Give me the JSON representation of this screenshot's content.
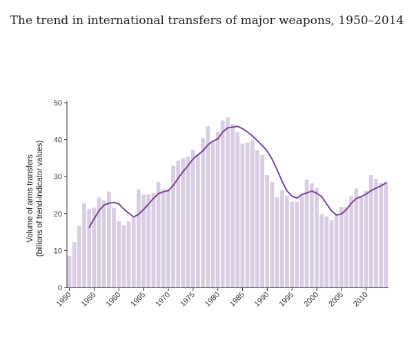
{
  "chart_data": {
    "type": "bar",
    "title": "The trend in international transfers of major weapons, 1950–2014",
    "ylabel": "Volume of arms transfers",
    "ylabel2": "(billions of trend-indicator values)",
    "xlabel": "",
    "ylim": [
      0,
      50
    ],
    "yticks": [
      "0",
      "10",
      "20",
      "30",
      "40",
      "50"
    ],
    "xticks": [
      "1950",
      "1955",
      "1960",
      "1965",
      "1970",
      "1975",
      "1980",
      "1985",
      "1990",
      "1995",
      "2000",
      "2005",
      "2010"
    ],
    "categories": [
      1950,
      1951,
      1952,
      1953,
      1954,
      1955,
      1956,
      1957,
      1958,
      1959,
      1960,
      1961,
      1962,
      1963,
      1964,
      1965,
      1966,
      1967,
      1968,
      1969,
      1970,
      1971,
      1972,
      1973,
      1974,
      1975,
      1976,
      1977,
      1978,
      1979,
      1980,
      1981,
      1982,
      1983,
      1984,
      1985,
      1986,
      1987,
      1988,
      1989,
      1990,
      1991,
      1992,
      1993,
      1994,
      1995,
      1996,
      1997,
      1998,
      1999,
      2000,
      2001,
      2002,
      2003,
      2004,
      2005,
      2006,
      2007,
      2008,
      2009,
      2010,
      2011,
      2012,
      2013,
      2014
    ],
    "series": [
      {
        "type": "bar",
        "color": "#d9cde4",
        "values": [
          8.6,
          12.3,
          16.6,
          22.7,
          21.2,
          21.6,
          24.4,
          23.6,
          26.0,
          21.6,
          17.9,
          16.8,
          17.9,
          19.0,
          26.6,
          25.2,
          25.2,
          25.6,
          28.5,
          26.6,
          26.5,
          32.9,
          34.3,
          35.0,
          35.4,
          37.2,
          35.9,
          40.4,
          43.6,
          39.6,
          42.1,
          45.2,
          46.0,
          44.2,
          42.1,
          38.9,
          39.2,
          39.8,
          37.2,
          35.9,
          30.4,
          28.6,
          24.4,
          26.3,
          24.8,
          23.2,
          23.2,
          25.2,
          29.2,
          28.2,
          26.9,
          19.8,
          19.2,
          18.2,
          19.6,
          21.8,
          21.8,
          24.7,
          26.8,
          24.5,
          26.2,
          30.4,
          29.3,
          28.3,
          28.6
        ]
      },
      {
        "type": "line",
        "color": "#7b3f98",
        "values": [
          null,
          null,
          null,
          null,
          16.3,
          18.6,
          20.8,
          22.3,
          22.8,
          23.0,
          22.6,
          21.2,
          20.1,
          19.1,
          19.8,
          21.1,
          22.6,
          24.1,
          25.4,
          25.9,
          26.2,
          27.6,
          29.6,
          31.4,
          33.0,
          34.8,
          35.9,
          37.0,
          38.6,
          39.6,
          40.2,
          42.1,
          43.2,
          43.4,
          43.6,
          43.0,
          42.1,
          41.0,
          39.7,
          38.4,
          36.9,
          34.7,
          31.8,
          28.7,
          26.1,
          24.7,
          24.2,
          25.2,
          25.6,
          26.1,
          25.5,
          24.6,
          22.6,
          20.7,
          19.6,
          19.9,
          21.1,
          22.8,
          24.1,
          24.6,
          25.3,
          26.2,
          26.9,
          27.5,
          28.3
        ]
      }
    ],
    "grid": false,
    "legend": "none"
  }
}
